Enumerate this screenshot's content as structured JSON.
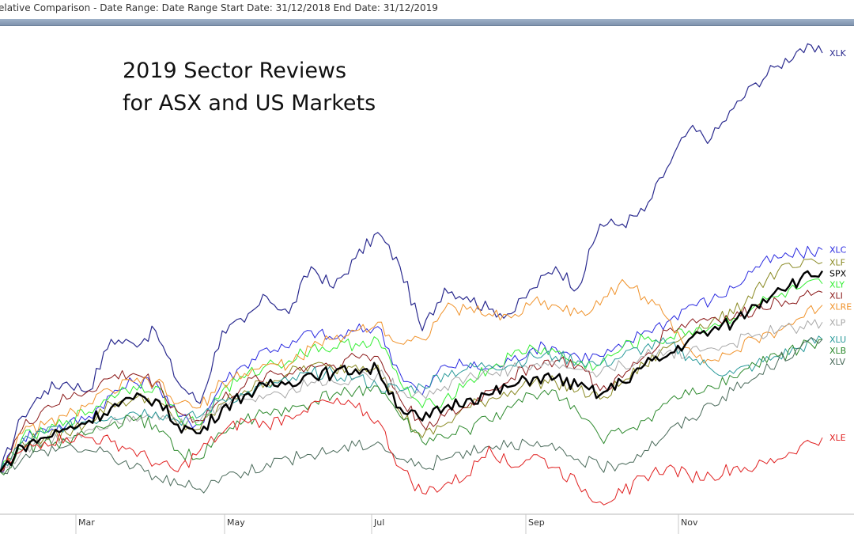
{
  "header": {
    "title": "elative Comparison - Date Range: Date Range  Start Date: 31/12/2018  End Date: 31/12/2019"
  },
  "chart_data": {
    "type": "line",
    "title_lines": [
      "2019 Sector Reviews",
      "for ASX and US Markets"
    ],
    "x_ticks": [
      "Mar",
      "May",
      "Jul",
      "Sep",
      "Nov"
    ],
    "series": [
      {
        "name": "XLK",
        "color": "#2b2b8f",
        "width": 1.2,
        "values": [
          -3,
          10,
          16,
          18,
          16,
          28,
          27,
          30,
          18,
          13,
          30,
          32,
          38,
          34,
          45,
          40,
          47,
          53,
          45,
          30,
          40,
          38,
          35,
          34,
          40,
          45,
          40,
          55,
          55,
          58,
          68,
          77,
          75,
          82,
          88,
          92,
          96,
          95
        ]
      },
      {
        "name": "XLC",
        "color": "#2a2ae0",
        "width": 1.0,
        "values": [
          -3,
          5,
          7,
          8,
          10,
          15,
          18,
          18,
          10,
          8,
          18,
          22,
          26,
          26,
          30,
          28,
          30,
          31,
          20,
          15,
          22,
          22,
          21,
          23,
          26,
          26,
          24,
          24,
          26,
          30,
          32,
          36,
          37,
          40,
          45,
          47,
          48,
          49
        ]
      },
      {
        "name": "XLF",
        "color": "#8a8a24",
        "width": 1.0,
        "values": [
          -3,
          4,
          5,
          6,
          9,
          13,
          14,
          14,
          8,
          7,
          13,
          16,
          18,
          20,
          22,
          21,
          22,
          22,
          11,
          5,
          8,
          12,
          14,
          16,
          18,
          18,
          16,
          14,
          18,
          22,
          26,
          30,
          32,
          34,
          40,
          44,
          45,
          46
        ]
      },
      {
        "name": "SPX",
        "color": "#000000",
        "width": 2.4,
        "values": [
          -3,
          3,
          5,
          7,
          9,
          12,
          14,
          14,
          8,
          6,
          12,
          15,
          17,
          18,
          20,
          20,
          21,
          21,
          12,
          9,
          12,
          14,
          15,
          17,
          19,
          19,
          17,
          15,
          18,
          22,
          24,
          28,
          30,
          32,
          36,
          40,
          42,
          44
        ]
      },
      {
        "name": "XLY",
        "color": "#33ee33",
        "width": 1.0,
        "values": [
          -3,
          5,
          6,
          9,
          11,
          15,
          17,
          17,
          10,
          8,
          16,
          19,
          22,
          23,
          26,
          26,
          27,
          28,
          18,
          12,
          14,
          18,
          21,
          24,
          26,
          25,
          22,
          22,
          26,
          28,
          28,
          30,
          31,
          33,
          36,
          38,
          40,
          41
        ]
      },
      {
        "name": "XLI",
        "color": "#8b1a1a",
        "width": 1.0,
        "values": [
          -3,
          7,
          12,
          14,
          16,
          19,
          20,
          18,
          11,
          9,
          14,
          17,
          20,
          20,
          22,
          22,
          24,
          24,
          14,
          8,
          10,
          12,
          16,
          19,
          22,
          23,
          22,
          16,
          19,
          24,
          30,
          32,
          33,
          33,
          35,
          37,
          38,
          39
        ]
      },
      {
        "name": "XLRE",
        "color": "#f0922a",
        "width": 1.0,
        "values": [
          -3,
          6,
          8,
          10,
          13,
          16,
          18,
          18,
          13,
          12,
          18,
          20,
          22,
          22,
          26,
          28,
          30,
          32,
          27,
          28,
          35,
          35,
          34,
          33,
          37,
          36,
          34,
          36,
          42,
          38,
          33,
          26,
          23,
          25,
          28,
          30,
          33,
          36
        ]
      },
      {
        "name": "XLP",
        "color": "#a8a8a8",
        "width": 1.0,
        "values": [
          -3,
          2,
          4,
          5,
          7,
          9,
          10,
          11,
          8,
          9,
          13,
          14,
          15,
          16,
          18,
          18,
          19,
          20,
          16,
          15,
          17,
          19,
          20,
          21,
          22,
          22,
          21,
          20,
          22,
          24,
          25,
          25,
          26,
          27,
          29,
          30,
          31,
          32
        ]
      },
      {
        "name": "XLU",
        "color": "#2a9a9a",
        "width": 1.0,
        "values": [
          -3,
          4,
          6,
          8,
          9,
          10,
          11,
          11,
          9,
          10,
          14,
          15,
          17,
          18,
          20,
          20,
          19,
          17,
          16,
          17,
          20,
          21,
          22,
          22,
          24,
          24,
          23,
          22,
          24,
          26,
          27,
          24,
          21,
          20,
          22,
          24,
          26,
          28
        ]
      },
      {
        "name": "XLB",
        "color": "#2e8a2e",
        "width": 1.0,
        "values": [
          -3,
          2,
          4,
          4,
          6,
          8,
          9,
          8,
          2,
          0,
          6,
          9,
          11,
          11,
          13,
          15,
          16,
          17,
          10,
          4,
          5,
          7,
          9,
          12,
          15,
          16,
          11,
          5,
          6,
          9,
          13,
          15,
          17,
          19,
          22,
          24,
          26,
          28
        ]
      },
      {
        "name": "XLV",
        "color": "#4a6a5a",
        "width": 1.0,
        "values": [
          -3,
          0,
          2,
          3,
          2,
          1,
          -2,
          -4,
          -6,
          -7,
          -4,
          -3,
          -1,
          0,
          1,
          2,
          3,
          4,
          0,
          -2,
          0,
          2,
          3,
          4,
          3,
          2,
          0,
          -2,
          -1,
          2,
          6,
          9,
          13,
          16,
          19,
          23,
          26,
          28
        ]
      },
      {
        "name": "XLE",
        "color": "#e02020",
        "width": 1.0,
        "values": [
          -3,
          2,
          4,
          5,
          5,
          4,
          2,
          -1,
          -3,
          2,
          6,
          9,
          8,
          10,
          13,
          13,
          12,
          9,
          -2,
          -8,
          -6,
          -4,
          3,
          -2,
          1,
          -2,
          -6,
          -10,
          -8,
          -4,
          -2,
          -4,
          -4,
          -2,
          -2,
          0,
          3,
          5
        ]
      }
    ]
  }
}
